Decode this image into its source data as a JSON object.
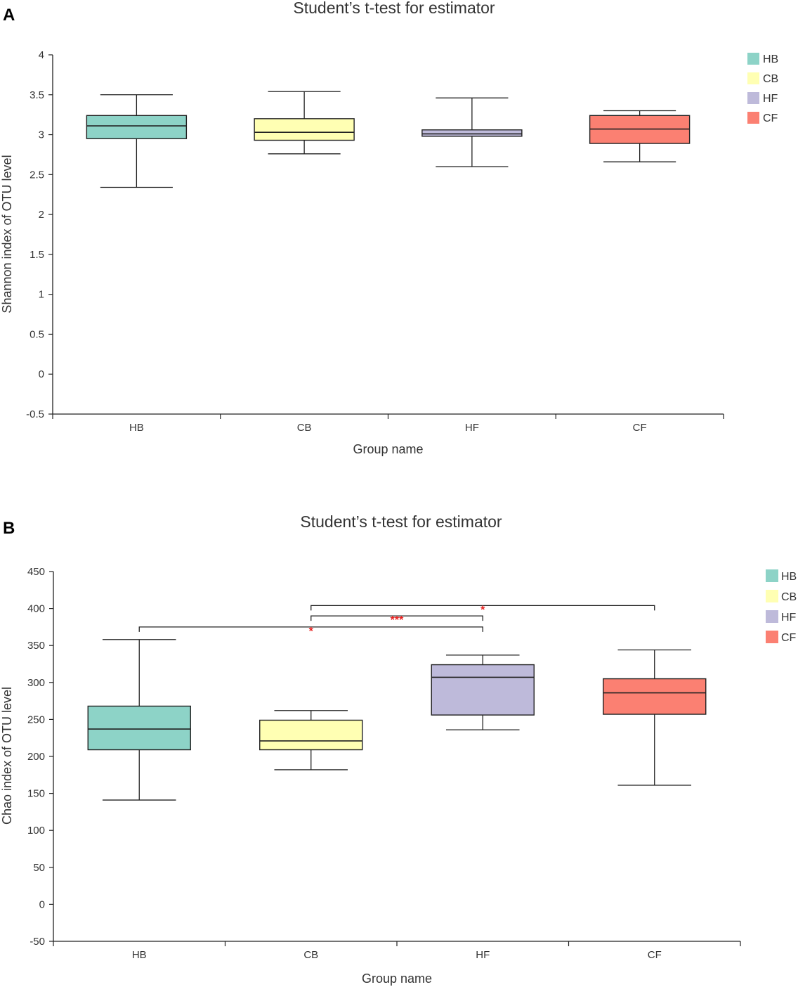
{
  "chart_data": [
    {
      "type": "box",
      "panel_label": "A",
      "title": "Student’s t-test for estimator",
      "xlabel": "Group name",
      "ylabel": "Shannon index of OTU level",
      "ylim": [
        -0.5,
        4
      ],
      "yticks": [
        -0.5,
        0,
        0.5,
        1,
        1.5,
        2,
        2.5,
        3,
        3.5,
        4
      ],
      "ytick_labels": [
        "-0.5",
        "0",
        "0.5",
        "1",
        "1.5",
        "2",
        "2.5",
        "3",
        "3.5",
        "4"
      ],
      "categories": [
        "HB",
        "CB",
        "HF",
        "CF"
      ],
      "legend": {
        "position": "top-right",
        "entries": [
          "HB",
          "CB",
          "HF",
          "CF"
        ]
      },
      "colors": [
        "#8dd3c7",
        "#ffffb3",
        "#bebada",
        "#fb8072"
      ],
      "series": [
        {
          "name": "HB",
          "min": 2.34,
          "q1": 2.95,
          "median": 3.11,
          "q3": 3.24,
          "max": 3.5
        },
        {
          "name": "CB",
          "min": 2.76,
          "q1": 2.93,
          "median": 3.03,
          "q3": 3.2,
          "max": 3.54
        },
        {
          "name": "HF",
          "min": 2.6,
          "q1": 2.98,
          "median": 3.01,
          "q3": 3.06,
          "max": 3.46
        },
        {
          "name": "CF",
          "min": 2.66,
          "q1": 2.89,
          "median": 3.07,
          "q3": 3.24,
          "max": 3.3
        }
      ],
      "significance": []
    },
    {
      "type": "box",
      "panel_label": "B",
      "title": "Student’s t-test for estimator",
      "xlabel": "Group name",
      "ylabel": "Chao index of OTU level",
      "ylim": [
        -50,
        450
      ],
      "yticks": [
        -50,
        0,
        50,
        100,
        150,
        200,
        250,
        300,
        350,
        400,
        450
      ],
      "ytick_labels": [
        "-50",
        "0",
        "50",
        "100",
        "150",
        "200",
        "250",
        "300",
        "350",
        "400",
        "450"
      ],
      "categories": [
        "HB",
        "CB",
        "HF",
        "CF"
      ],
      "legend": {
        "position": "top-right",
        "entries": [
          "HB",
          "CB",
          "HF",
          "CF"
        ]
      },
      "colors": [
        "#8dd3c7",
        "#ffffb3",
        "#bebada",
        "#fb8072"
      ],
      "series": [
        {
          "name": "HB",
          "min": 141,
          "q1": 209,
          "median": 237,
          "q3": 268,
          "max": 358
        },
        {
          "name": "CB",
          "min": 182,
          "q1": 209,
          "median": 221,
          "q3": 249,
          "max": 262
        },
        {
          "name": "HF",
          "min": 236,
          "q1": 256,
          "median": 307,
          "q3": 324,
          "max": 337
        },
        {
          "name": "CF",
          "min": 161,
          "q1": 257,
          "median": 286,
          "q3": 305,
          "max": 344
        }
      ],
      "significance": [
        {
          "from": "CB",
          "to": "CF",
          "y": 404,
          "label": "*"
        },
        {
          "from": "CB",
          "to": "HF",
          "y": 390,
          "label": "***"
        },
        {
          "from": "HB",
          "to": "HF",
          "y": 375,
          "label": "*"
        }
      ]
    }
  ]
}
